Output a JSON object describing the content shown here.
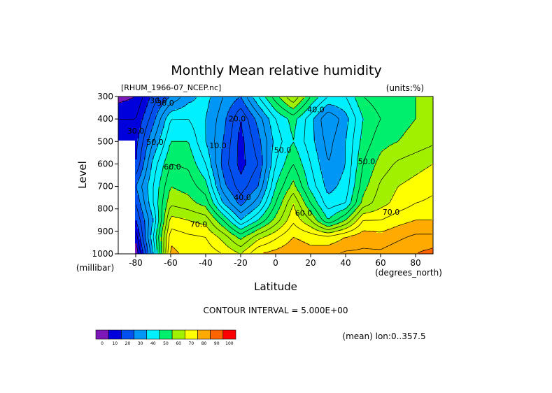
{
  "chart_data": {
    "type": "heatmap",
    "title": "Monthly Mean relative humidity",
    "subtitle_left": "[RHUM_1966-07_NCEP.nc]",
    "subtitle_right": "(units:%)",
    "xlabel": "Latitude",
    "xunits": "(degrees_north)",
    "ylabel": "Level",
    "yunits": "(millibar)",
    "xlim": [
      -90,
      90
    ],
    "ylim": [
      1000,
      300
    ],
    "xticks": [
      {
        "value": -80,
        "label": "-80"
      },
      {
        "value": -60,
        "label": "-60"
      },
      {
        "value": -40,
        "label": "-40"
      },
      {
        "value": -20,
        "label": "-20"
      },
      {
        "value": 0,
        "label": "0"
      },
      {
        "value": 20,
        "label": "20"
      },
      {
        "value": 40,
        "label": "40"
      },
      {
        "value": 60,
        "label": "60"
      },
      {
        "value": 80,
        "label": "80"
      }
    ],
    "yticks": [
      {
        "value": 300,
        "label": "300"
      },
      {
        "value": 400,
        "label": "400"
      },
      {
        "value": 500,
        "label": "500"
      },
      {
        "value": 600,
        "label": "600"
      },
      {
        "value": 700,
        "label": "700"
      },
      {
        "value": 800,
        "label": "800"
      },
      {
        "value": 900,
        "label": "900"
      },
      {
        "value": 1000,
        "label": "1000"
      }
    ],
    "contour_interval_text": "CONTOUR INTERVAL = 5.000E+00",
    "footer_note": "(mean) lon:0..357.5",
    "levels": [
      1000,
      925,
      850,
      775,
      700,
      600,
      500,
      400,
      300
    ],
    "latitudes": [
      -90,
      -80,
      -70,
      -60,
      -50,
      -40,
      -30,
      -20,
      -10,
      0,
      10,
      20,
      30,
      40,
      50,
      60,
      70,
      80,
      90
    ],
    "values": [
      [
        null,
        5,
        40,
        82,
        78,
        78,
        75,
        70,
        80,
        82,
        84,
        82,
        84,
        86,
        86,
        86,
        88,
        90,
        92
      ],
      [
        null,
        12,
        45,
        78,
        76,
        75,
        68,
        58,
        68,
        74,
        80,
        78,
        76,
        80,
        83,
        82,
        84,
        86,
        86
      ],
      [
        null,
        20,
        40,
        72,
        70,
        68,
        55,
        40,
        50,
        62,
        74,
        65,
        50,
        60,
        75,
        75,
        78,
        80,
        80
      ],
      [
        null,
        25,
        45,
        64,
        62,
        58,
        40,
        28,
        38,
        55,
        70,
        55,
        42,
        45,
        62,
        68,
        72,
        75,
        76
      ],
      [
        null,
        30,
        45,
        60,
        58,
        52,
        32,
        22,
        30,
        50,
        62,
        48,
        38,
        42,
        58,
        66,
        70,
        72,
        74
      ],
      [
        null,
        20,
        42,
        55,
        54,
        45,
        28,
        18,
        25,
        45,
        55,
        45,
        35,
        40,
        55,
        62,
        66,
        68,
        70
      ],
      [
        18,
        18,
        35,
        50,
        50,
        40,
        30,
        18,
        28,
        42,
        50,
        42,
        33,
        40,
        52,
        58,
        60,
        62,
        64
      ],
      [
        15,
        15,
        28,
        45,
        45,
        40,
        32,
        20,
        32,
        45,
        52,
        42,
        30,
        38,
        50,
        55,
        58,
        60,
        62
      ],
      [
        8,
        10,
        22,
        30,
        38,
        42,
        35,
        30,
        45,
        58,
        70,
        55,
        45,
        45,
        55,
        58,
        60,
        60,
        60
      ]
    ],
    "contour_labels": [
      {
        "text": "30.0",
        "lat": -63,
        "lev": 340
      },
      {
        "text": "30.0",
        "lat": -67,
        "lev": 330
      },
      {
        "text": "30.0",
        "lat": -80,
        "lev": 465
      },
      {
        "text": "50.0",
        "lat": -69,
        "lev": 515
      },
      {
        "text": "60.0",
        "lat": -59,
        "lev": 625
      },
      {
        "text": "70.0",
        "lat": -44,
        "lev": 880
      },
      {
        "text": "20.0",
        "lat": -22,
        "lev": 410
      },
      {
        "text": "10.0",
        "lat": -33,
        "lev": 530
      },
      {
        "text": "40.0",
        "lat": -19,
        "lev": 760
      },
      {
        "text": "50.0",
        "lat": 4,
        "lev": 550
      },
      {
        "text": "60.0",
        "lat": 16,
        "lev": 830
      },
      {
        "text": "40.0",
        "lat": 23,
        "lev": 370
      },
      {
        "text": "50.0",
        "lat": 52,
        "lev": 600
      },
      {
        "text": "70.0",
        "lat": 66,
        "lev": 825
      }
    ],
    "colorbar": {
      "boundaries": [
        0,
        10,
        20,
        30,
        40,
        50,
        60,
        70,
        80,
        90,
        100
      ],
      "labels": [
        "0",
        "10",
        "20",
        "30",
        "40",
        "50",
        "60",
        "70",
        "80",
        "90",
        "100"
      ],
      "colors": [
        "#7d18b8",
        "#0000dc",
        "#0050f0",
        "#0096f5",
        "#00f0ff",
        "#00f06e",
        "#a0f000",
        "#ffff00",
        "#ffaa00",
        "#ff6400",
        "#ff0000"
      ]
    },
    "colors": {
      "missing": "#ffffff",
      "contour_line": "#000000"
    }
  }
}
